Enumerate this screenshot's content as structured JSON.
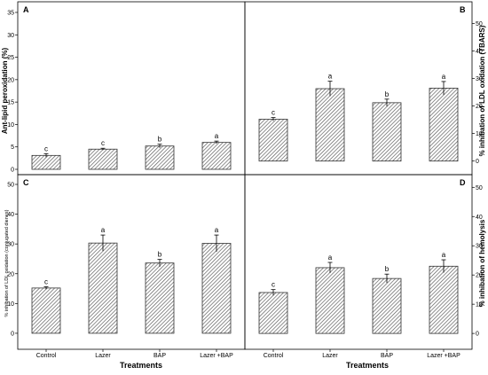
{
  "chart_data": [
    {
      "panel": "A",
      "type": "bar",
      "categories": [
        "Control",
        "Lazer",
        "BAP",
        "Lazer +BAP"
      ],
      "values": [
        3.1,
        4.5,
        5.2,
        6.0
      ],
      "errors": [
        0.4,
        0.2,
        0.4,
        0.3
      ],
      "significance": [
        "c",
        "c",
        "b",
        "a"
      ],
      "ylabel": "Ant-lipid peroxidation (%)",
      "ylim": [
        0,
        35
      ],
      "yticks": [
        0,
        5,
        10,
        15,
        20,
        25,
        30,
        35
      ],
      "yaxis_side": "left"
    },
    {
      "panel": "B",
      "type": "bar",
      "categories": [
        "Control",
        "Lazer",
        "BAP",
        "Lazer +BAP"
      ],
      "values": [
        15.2,
        26.3,
        21.2,
        26.5
      ],
      "errors": [
        0.6,
        2.7,
        1.3,
        2.4
      ],
      "significance": [
        "c",
        "a",
        "b",
        "a"
      ],
      "ylabel": "% inhibation of LDL oxidation (TBARS)",
      "ylim": [
        -3,
        54
      ],
      "yticks": [
        0,
        10,
        20,
        30,
        40,
        50
      ],
      "yaxis_side": "right"
    },
    {
      "panel": "C",
      "type": "bar",
      "categories": [
        "Control",
        "Lazer",
        "BAP",
        "Lazer +BAP"
      ],
      "values": [
        15.2,
        30.3,
        23.6,
        30.2
      ],
      "errors": [
        0.4,
        2.7,
        1.2,
        2.8
      ],
      "significance": [
        "c",
        "a",
        "b",
        "a"
      ],
      "ylabel": "% inhibation of LDL oxidation (conjugated dienes)",
      "ylim": [
        -3,
        50
      ],
      "yticks": [
        0,
        10,
        20,
        30,
        40,
        50
      ],
      "yaxis_side": "left"
    },
    {
      "panel": "D",
      "type": "bar",
      "categories": [
        "Control",
        "Lazer",
        "BAP",
        "Lazer +BAP"
      ],
      "values": [
        14.0,
        22.5,
        18.8,
        23.0
      ],
      "errors": [
        1.0,
        1.8,
        1.5,
        2.2
      ],
      "significance": [
        "c",
        "a",
        "b",
        "a"
      ],
      "ylabel": "% inhibation of hemolysis",
      "ylim": [
        -3,
        51
      ],
      "yticks": [
        0,
        10,
        20,
        30,
        40,
        50
      ],
      "yaxis_side": "right"
    }
  ],
  "xlabel": "Treatments",
  "colors": {
    "bar_fill": "#ffffff",
    "hatch": "#555555",
    "axis": "#000000"
  }
}
